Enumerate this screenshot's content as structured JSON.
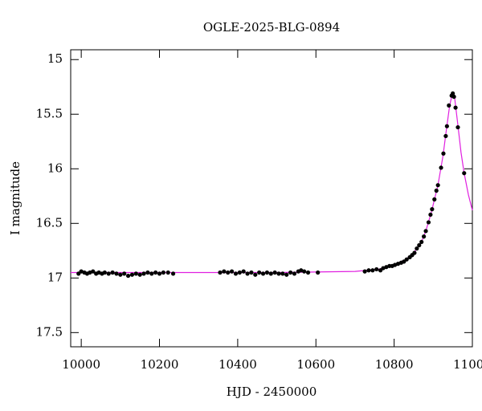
{
  "chart_data": {
    "type": "scatter",
    "title": "OGLE-2025-BLG-0894",
    "x_label": "HJD - 2450000",
    "y_label": "I magnitude",
    "xlim": [
      9973,
      11000
    ],
    "ylim": [
      17.63,
      14.91
    ],
    "xticks": [
      10000,
      10200,
      10400,
      10600,
      10800,
      11000
    ],
    "yticks": [
      15,
      15.5,
      16,
      16.5,
      17,
      17.5
    ],
    "points": {
      "color": "#000000",
      "x": [
        9993,
        10000,
        10008,
        10015,
        10022,
        10030,
        10038,
        10045,
        10053,
        10060,
        10070,
        10080,
        10090,
        10100,
        10110,
        10120,
        10130,
        10140,
        10150,
        10160,
        10170,
        10180,
        10190,
        10200,
        10210,
        10222,
        10235,
        10355,
        10365,
        10375,
        10385,
        10395,
        10405,
        10415,
        10425,
        10435,
        10445,
        10455,
        10465,
        10475,
        10485,
        10495,
        10505,
        10515,
        10525,
        10535,
        10545,
        10555,
        10562,
        10570,
        10580,
        10605,
        10725,
        10735,
        10745,
        10755,
        10765,
        10772,
        10780,
        10788,
        10795,
        10802,
        10810,
        10818,
        10825,
        10832,
        10840,
        10846,
        10852,
        10858,
        10864,
        10870,
        10876,
        10881,
        10888,
        10893,
        10897,
        10903,
        10908,
        10912,
        10920,
        10926,
        10932,
        10935,
        10940,
        10947,
        10950,
        10953,
        10957,
        10963,
        10979
      ],
      "y": [
        16.96,
        16.94,
        16.95,
        16.96,
        16.95,
        16.94,
        16.96,
        16.95,
        16.96,
        16.95,
        16.96,
        16.95,
        16.96,
        16.97,
        16.96,
        16.98,
        16.97,
        16.96,
        16.97,
        16.96,
        16.95,
        16.96,
        16.95,
        16.96,
        16.95,
        16.95,
        16.96,
        16.95,
        16.94,
        16.95,
        16.94,
        16.96,
        16.95,
        16.94,
        16.96,
        16.95,
        16.97,
        16.95,
        16.96,
        16.95,
        16.96,
        16.95,
        16.96,
        16.96,
        16.97,
        16.95,
        16.96,
        16.94,
        16.93,
        16.94,
        16.95,
        16.95,
        16.94,
        16.93,
        16.93,
        16.92,
        16.93,
        16.91,
        16.9,
        16.89,
        16.89,
        16.88,
        16.87,
        16.86,
        16.85,
        16.83,
        16.81,
        16.79,
        16.77,
        16.73,
        16.7,
        16.67,
        16.62,
        16.57,
        16.49,
        16.42,
        16.37,
        16.28,
        16.2,
        16.15,
        15.99,
        15.86,
        15.7,
        15.61,
        15.42,
        15.33,
        15.31,
        15.34,
        15.44,
        15.62,
        16.04
      ]
    },
    "model": {
      "color": "#e020e0",
      "x": [
        9973,
        10200,
        10500,
        10700,
        10760,
        10800,
        10830,
        10850,
        10870,
        10881,
        10895,
        10912,
        10925,
        10934,
        10942,
        10949,
        10955,
        10963,
        10971,
        10979,
        10990,
        11000
      ],
      "y": [
        16.95,
        16.95,
        16.95,
        16.94,
        16.92,
        16.88,
        16.83,
        16.77,
        16.67,
        16.57,
        16.4,
        16.15,
        15.88,
        15.63,
        15.42,
        15.31,
        15.36,
        15.6,
        15.85,
        16.04,
        16.24,
        16.38
      ]
    }
  }
}
